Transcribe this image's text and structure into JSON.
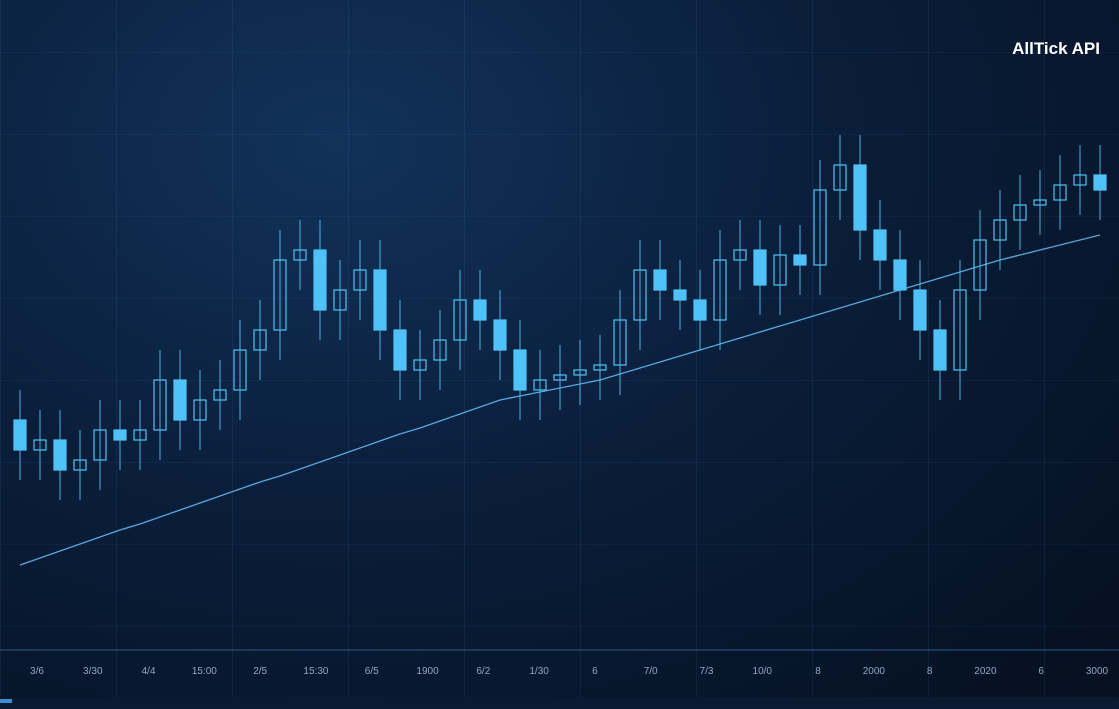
{
  "watermark": "AllTick API",
  "chart_data": {
    "type": "candlestick",
    "ylim": [
      0,
      700
    ],
    "x_labels": [
      "3/6",
      "3/30",
      "4/4",
      "15:00",
      "2/5",
      "15:30",
      "6/5",
      "1900",
      "6/2",
      "1/30",
      "6",
      "7/0",
      "7/3",
      "10/0",
      "8",
      "2000",
      "8",
      "2020",
      "6",
      "3000"
    ],
    "color": "#4fc3f7",
    "line_color": "#5fb4ee",
    "open": [
      280,
      250,
      260,
      230,
      240,
      270,
      260,
      270,
      320,
      280,
      300,
      310,
      350,
      370,
      440,
      450,
      390,
      410,
      430,
      370,
      330,
      340,
      360,
      400,
      380,
      350,
      310,
      320,
      325,
      330,
      335,
      380,
      430,
      410,
      400,
      380,
      440,
      450,
      415,
      445,
      435,
      510,
      535,
      470,
      440,
      410,
      370,
      330,
      410,
      460,
      480,
      495,
      500,
      515,
      525
    ],
    "high": [
      310,
      290,
      290,
      270,
      300,
      300,
      300,
      350,
      350,
      330,
      340,
      380,
      400,
      470,
      480,
      480,
      440,
      460,
      460,
      400,
      370,
      390,
      430,
      430,
      410,
      380,
      350,
      355,
      360,
      365,
      410,
      460,
      460,
      440,
      430,
      470,
      480,
      480,
      475,
      475,
      540,
      565,
      565,
      500,
      470,
      440,
      400,
      440,
      490,
      510,
      525,
      530,
      545,
      555,
      555
    ],
    "low": [
      220,
      220,
      200,
      200,
      210,
      230,
      230,
      240,
      250,
      250,
      270,
      280,
      320,
      340,
      410,
      360,
      360,
      380,
      340,
      300,
      300,
      310,
      330,
      350,
      320,
      280,
      280,
      290,
      295,
      300,
      305,
      350,
      380,
      370,
      350,
      350,
      410,
      385,
      385,
      405,
      405,
      480,
      440,
      410,
      380,
      340,
      300,
      300,
      380,
      430,
      450,
      465,
      470,
      485,
      480
    ],
    "close": [
      250,
      260,
      230,
      240,
      270,
      260,
      270,
      320,
      280,
      300,
      310,
      350,
      370,
      440,
      450,
      390,
      410,
      430,
      370,
      330,
      340,
      360,
      400,
      380,
      350,
      310,
      320,
      325,
      330,
      335,
      380,
      430,
      410,
      400,
      380,
      440,
      450,
      415,
      445,
      435,
      510,
      535,
      470,
      440,
      410,
      370,
      330,
      410,
      460,
      480,
      495,
      500,
      515,
      525,
      510
    ],
    "ma": [
      135,
      142,
      149,
      156,
      163,
      170,
      176,
      183,
      190,
      197,
      204,
      211,
      218,
      224,
      231,
      238,
      245,
      252,
      259,
      266,
      272,
      279,
      286,
      293,
      300,
      304,
      308,
      312,
      316,
      320,
      326,
      332,
      338,
      344,
      350,
      356,
      362,
      368,
      374,
      380,
      386,
      392,
      398,
      404,
      410,
      416,
      422,
      428,
      434,
      440,
      445,
      450,
      455,
      460,
      465
    ]
  }
}
